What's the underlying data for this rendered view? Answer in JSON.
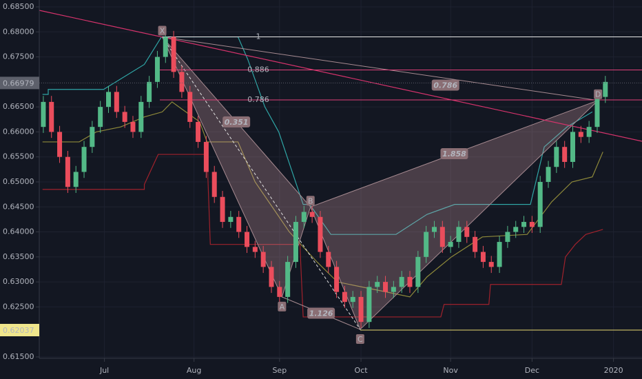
{
  "chart_data": {
    "type": "candlestick",
    "xlim": [
      0,
      74
    ],
    "ylim": [
      0.61472,
      0.68638
    ],
    "xticks": [
      {
        "value": 8,
        "label": "Jul"
      },
      {
        "value": 19,
        "label": "Aug"
      },
      {
        "value": 29.5,
        "label": "Sep"
      },
      {
        "value": 39.5,
        "label": "Oct"
      },
      {
        "value": 50.5,
        "label": "Nov"
      },
      {
        "value": 60.5,
        "label": "Dec"
      },
      {
        "value": 70.5,
        "label": "2020"
      }
    ],
    "yticks": [
      {
        "value": 0.685,
        "label": "0.68500"
      },
      {
        "value": 0.68,
        "label": "0.68000"
      },
      {
        "value": 0.675,
        "label": "0.67500"
      },
      {
        "value": 0.665,
        "label": "0.66500"
      },
      {
        "value": 0.66,
        "label": "0.66000"
      },
      {
        "value": 0.655,
        "label": "0.65500"
      },
      {
        "value": 0.65,
        "label": "0.65000"
      },
      {
        "value": 0.645,
        "label": "0.64500"
      },
      {
        "value": 0.64,
        "label": "0.64000"
      },
      {
        "value": 0.635,
        "label": "0.63500"
      },
      {
        "value": 0.63,
        "label": "0.63000"
      },
      {
        "value": 0.625,
        "label": "0.62500"
      },
      {
        "value": 0.615,
        "label": "0.61500"
      }
    ],
    "grid": true,
    "up_color": "#53b987",
    "down_color": "#eb4d5c",
    "open": [
      0.661,
      0.666,
      0.66,
      0.655,
      0.649,
      0.652,
      0.657,
      0.661,
      0.665,
      0.668,
      0.664,
      0.662,
      0.66,
      0.666,
      0.67,
      0.675,
      0.679,
      0.672,
      0.668,
      0.662,
      0.658,
      0.652,
      0.647,
      0.642,
      0.643,
      0.64,
      0.637,
      0.636,
      0.633,
      0.629,
      0.627,
      0.634,
      0.642,
      0.644,
      0.643,
      0.636,
      0.633,
      0.628,
      0.626,
      0.627,
      0.622,
      0.629,
      0.63,
      0.628,
      0.629,
      0.631,
      0.629,
      0.635,
      0.64,
      0.641,
      0.637,
      0.638,
      0.641,
      0.639,
      0.636,
      0.634,
      0.633,
      0.638,
      0.64,
      0.641,
      0.642,
      0.641,
      0.65,
      0.653,
      0.657,
      0.654,
      0.66,
      0.659,
      0.661,
      0.667
    ],
    "close": [
      0.666,
      0.66,
      0.655,
      0.649,
      0.652,
      0.657,
      0.661,
      0.665,
      0.668,
      0.664,
      0.662,
      0.66,
      0.666,
      0.67,
      0.675,
      0.679,
      0.672,
      0.668,
      0.662,
      0.658,
      0.652,
      0.647,
      0.642,
      0.643,
      0.64,
      0.637,
      0.636,
      0.633,
      0.629,
      0.627,
      0.634,
      0.642,
      0.644,
      0.643,
      0.636,
      0.633,
      0.628,
      0.626,
      0.627,
      0.622,
      0.629,
      0.63,
      0.628,
      0.629,
      0.631,
      0.629,
      0.635,
      0.64,
      0.641,
      0.637,
      0.638,
      0.641,
      0.639,
      0.636,
      0.634,
      0.633,
      0.638,
      0.64,
      0.641,
      0.642,
      0.641,
      0.65,
      0.653,
      0.657,
      0.654,
      0.66,
      0.659,
      0.661,
      0.667,
      0.67
    ],
    "high": [
      0.6672,
      0.6672,
      0.6612,
      0.6562,
      0.6532,
      0.6582,
      0.6622,
      0.6662,
      0.6692,
      0.6692,
      0.6652,
      0.6632,
      0.6672,
      0.6712,
      0.6762,
      0.6802,
      0.6802,
      0.6732,
      0.6692,
      0.6632,
      0.6592,
      0.6532,
      0.6482,
      0.6442,
      0.6442,
      0.6412,
      0.6382,
      0.6372,
      0.6342,
      0.6302,
      0.6352,
      0.6432,
      0.6452,
      0.6452,
      0.6442,
      0.6372,
      0.6342,
      0.6292,
      0.6282,
      0.6282,
      0.6302,
      0.6312,
      0.6312,
      0.6302,
      0.6322,
      0.6322,
      0.6362,
      0.6412,
      0.6422,
      0.6422,
      0.6392,
      0.6422,
      0.6422,
      0.6402,
      0.6372,
      0.6352,
      0.6392,
      0.6412,
      0.6422,
      0.6432,
      0.6432,
      0.6512,
      0.6542,
      0.6582,
      0.6582,
      0.6612,
      0.6612,
      0.6622,
      0.6682,
      0.6712
    ],
    "low": [
      0.6598,
      0.6588,
      0.6538,
      0.6478,
      0.6478,
      0.6508,
      0.6558,
      0.6598,
      0.6638,
      0.6628,
      0.6608,
      0.6588,
      0.6588,
      0.6648,
      0.6688,
      0.6738,
      0.6708,
      0.6668,
      0.6608,
      0.6568,
      0.6508,
      0.6458,
      0.6408,
      0.6408,
      0.6388,
      0.6358,
      0.6348,
      0.6318,
      0.6278,
      0.6258,
      0.6258,
      0.6328,
      0.6408,
      0.6418,
      0.6348,
      0.6318,
      0.6268,
      0.6248,
      0.6248,
      0.6208,
      0.6208,
      0.6278,
      0.6268,
      0.6268,
      0.6278,
      0.6278,
      0.6278,
      0.6338,
      0.6388,
      0.6358,
      0.6358,
      0.6368,
      0.6378,
      0.6348,
      0.6328,
      0.6318,
      0.6318,
      0.6368,
      0.6388,
      0.6398,
      0.6398,
      0.6398,
      0.6488,
      0.6518,
      0.6528,
      0.6528,
      0.6578,
      0.6578,
      0.6598,
      0.6658
    ],
    "lines": [
      {
        "color": "#2fa6a6",
        "x": [
          0.4,
          1.1,
          1.1,
          7.9,
          12.9,
          15,
          24.4,
          25.6,
          27.7,
          29.4,
          32.4,
          33.2,
          35.8,
          43.8,
          47.6,
          51,
          60.3,
          62,
          64.8,
          67.9
        ],
        "values": [
          0.6675,
          0.6675,
          0.6685,
          0.6685,
          0.6735,
          0.679,
          0.679,
          0.6745,
          0.665,
          0.66,
          0.6455,
          0.6455,
          0.6395,
          0.6395,
          0.6435,
          0.6455,
          0.6455,
          0.657,
          0.661,
          0.664
        ]
      },
      {
        "color": "#8f8a3a",
        "x": [
          0.4,
          4.9,
          7,
          10,
          12.9,
          15.1,
          16.3,
          19.7,
          20.6,
          24.4,
          26.5,
          28.6,
          30.7,
          34.1,
          36.6,
          42.6,
          45.5,
          47.6,
          50.6,
          54.4,
          59.9,
          62.9,
          65.4,
          67.9,
          69.2
        ],
        "values": [
          0.658,
          0.658,
          0.66,
          0.661,
          0.663,
          0.664,
          0.666,
          0.662,
          0.658,
          0.658,
          0.65,
          0.645,
          0.64,
          0.634,
          0.63,
          0.628,
          0.627,
          0.631,
          0.635,
          0.639,
          0.6395,
          0.646,
          0.65,
          0.651,
          0.656
        ]
      },
      {
        "color": "#a1222c",
        "x": [
          0.4,
          12.9,
          12.9,
          14.6,
          20.6,
          21,
          32,
          32.4,
          49.3,
          49.7,
          55.2,
          55.4,
          64.1,
          64.6,
          65.8,
          67.1,
          69.2
        ],
        "values": [
          0.6485,
          0.6485,
          0.6495,
          0.6555,
          0.6555,
          0.6375,
          0.6375,
          0.623,
          0.623,
          0.6255,
          0.6255,
          0.6295,
          0.6295,
          0.635,
          0.6375,
          0.6395,
          0.6405
        ]
      }
    ],
    "trendline": {
      "x": [
        0,
        74
      ],
      "values": [
        0.68431,
        0.65813
      ]
    },
    "pattern": {
      "points": [
        {
          "label": "X",
          "x": 15.1,
          "y": 0.679
        },
        {
          "label": "A",
          "x": 29.8,
          "y": 0.627
        },
        {
          "label": "B",
          "x": 33.3,
          "y": 0.645
        },
        {
          "label": "C",
          "x": 39.4,
          "y": 0.6205
        },
        {
          "label": "D",
          "x": 68.6,
          "y": 0.6663
        }
      ],
      "ratios": [
        0.351,
        1.126,
        1.858,
        0.786
      ]
    },
    "fib_levels": [
      {
        "ratio": 1,
        "price": 0.679
      },
      {
        "ratio": 0.886,
        "price": 0.6724
      },
      {
        "ratio": 0.786,
        "price": 0.6664
      }
    ],
    "price_tags": [
      {
        "price": 0.66979,
        "color": "#5d606b"
      },
      {
        "price": 0.62037,
        "color": "#f0e68c"
      }
    ]
  }
}
